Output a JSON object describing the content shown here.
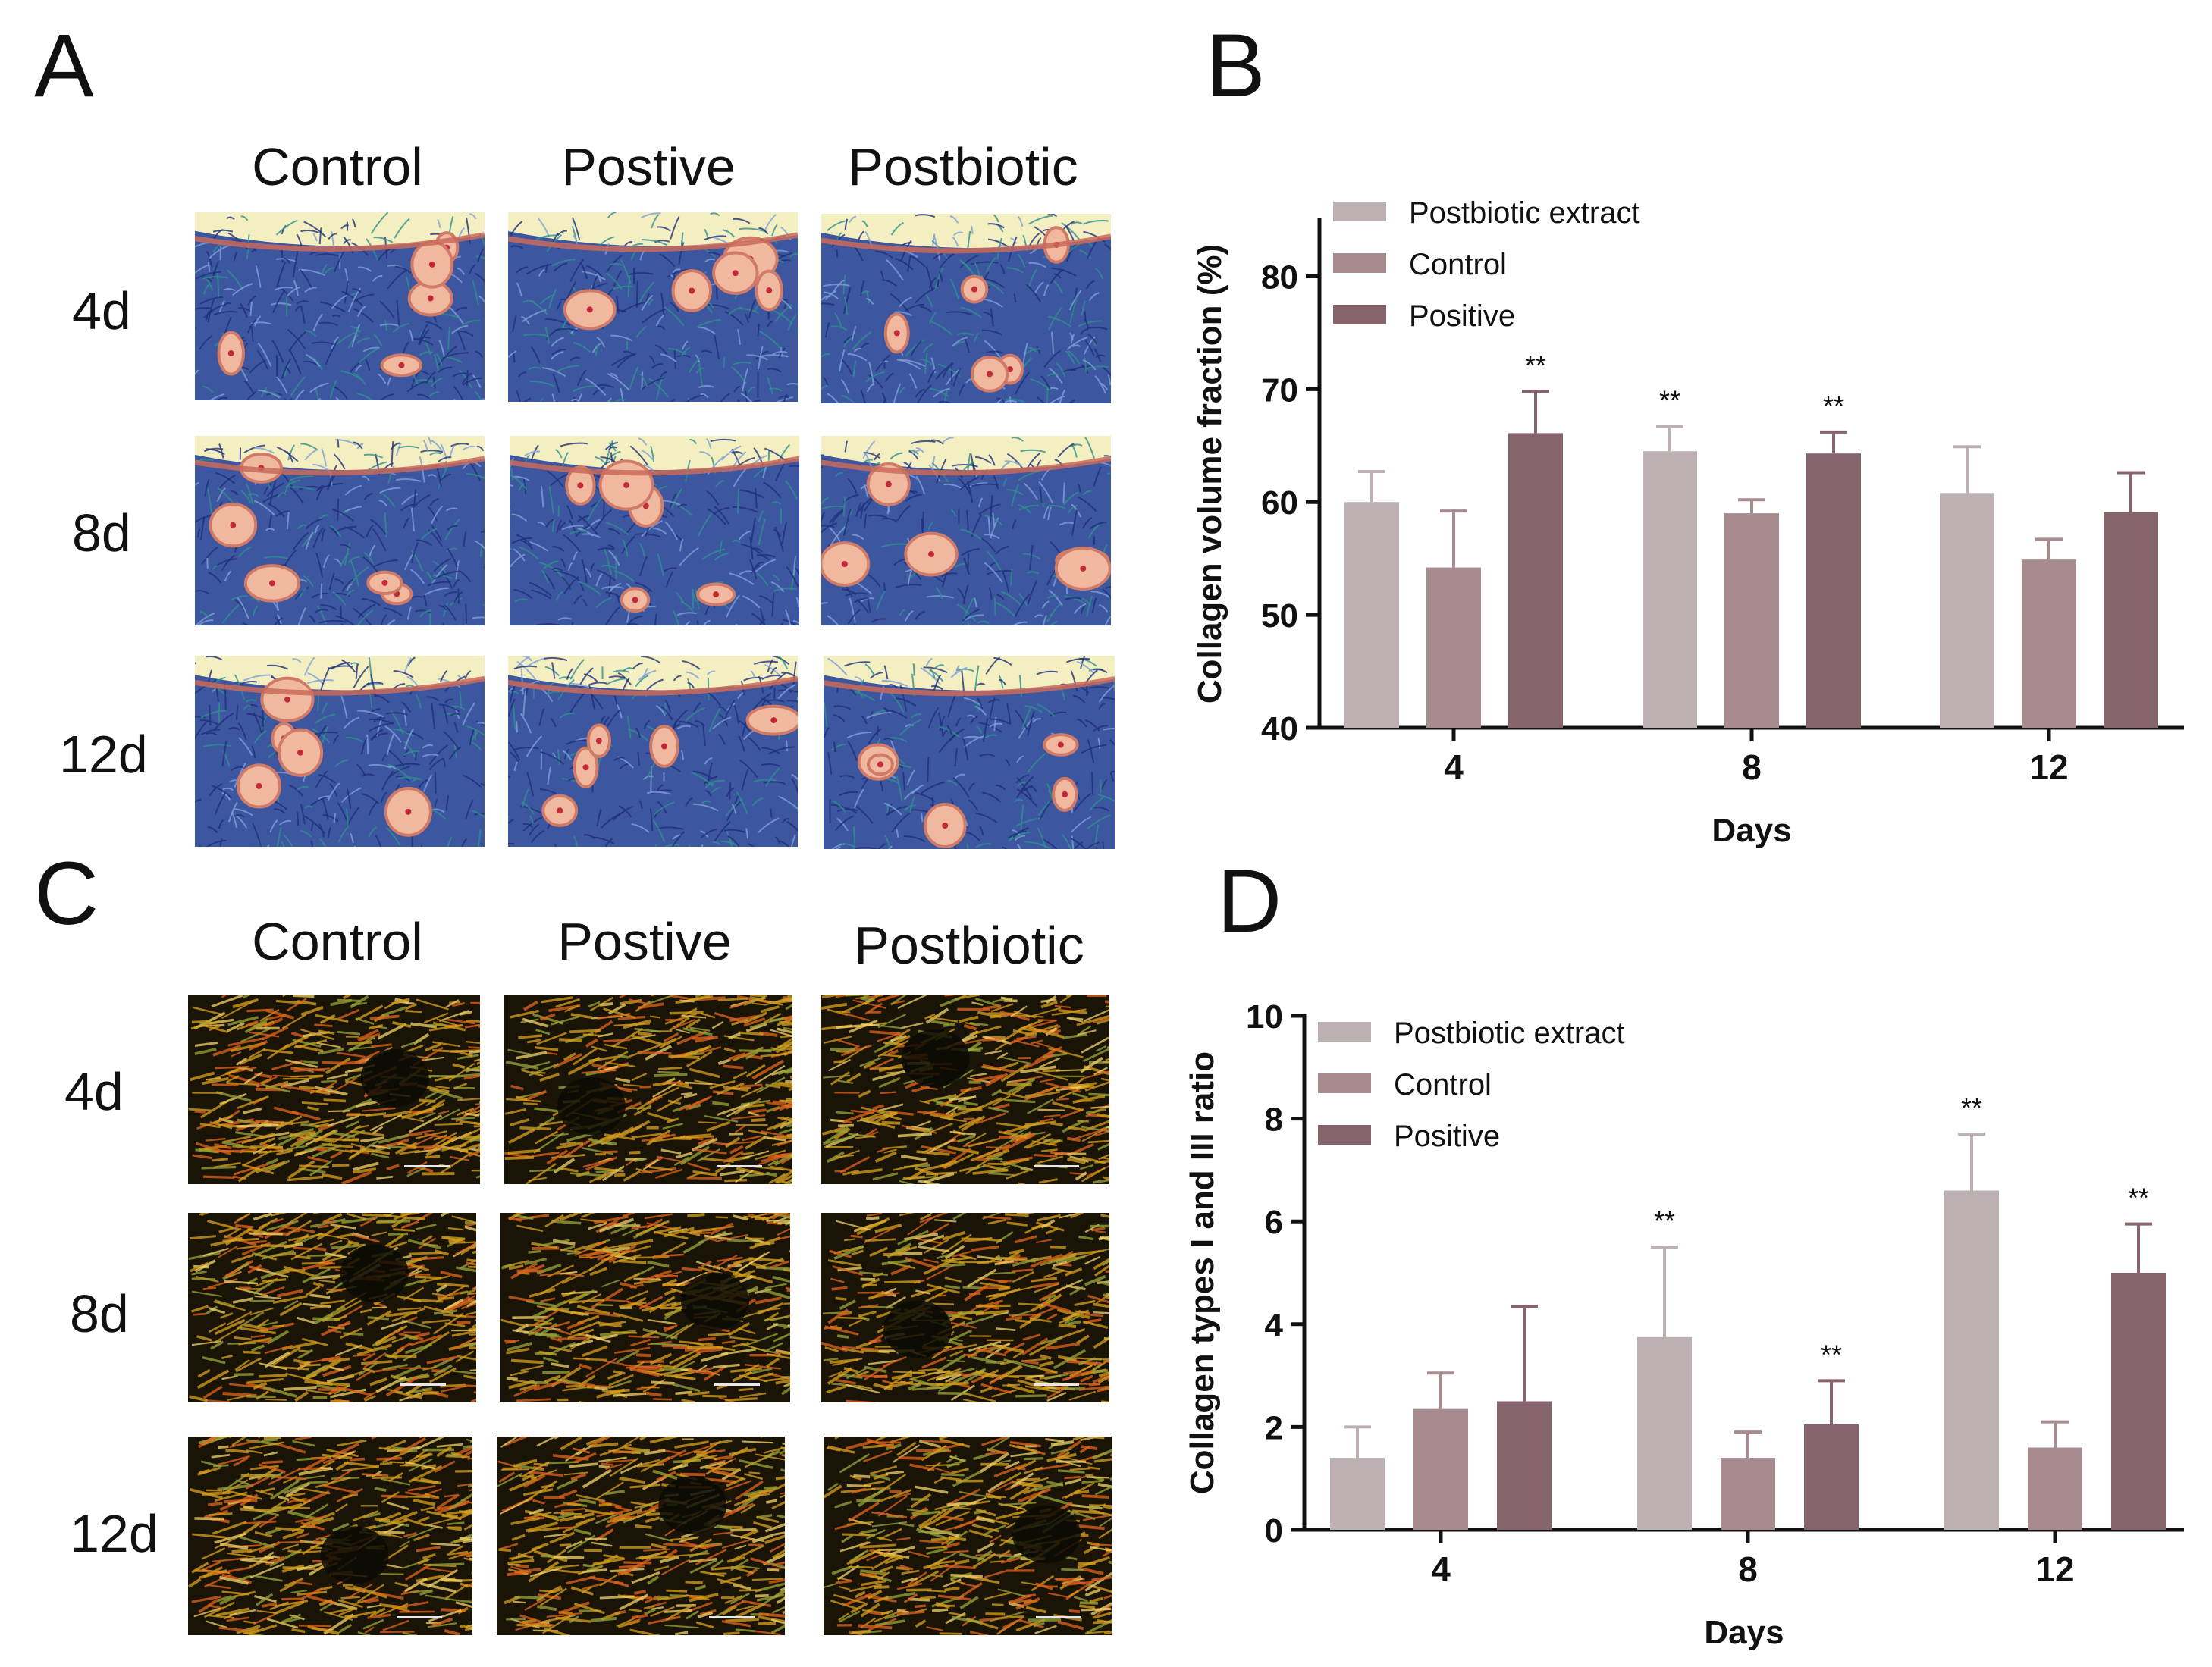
{
  "panels": {
    "A": {
      "letter": "A",
      "columns": [
        "Control",
        "Postive",
        "Postbiotic"
      ],
      "rows": [
        "4d",
        "8d",
        "12d"
      ]
    },
    "B": {
      "letter": "B"
    },
    "C": {
      "letter": "C",
      "columns": [
        "Control",
        "Postive",
        "Postbiotic"
      ],
      "rows": [
        "4d",
        "8d",
        "12d"
      ]
    },
    "D": {
      "letter": "D"
    }
  },
  "colors": {
    "postbiotic_extract": "#bdb0b2",
    "control": "#a88b8f",
    "positive": "#86646c",
    "masson_collagen": "#3d56a0",
    "masson_muscle": "#d07a68",
    "masson_background": "#f4efc0",
    "picrosirius_background": "#1a1406",
    "picrosirius_fibers": "#d9a01e"
  },
  "chart_data": [
    {
      "panel": "B",
      "type": "bar",
      "xlabel": "Days",
      "ylabel": "Collagen volume fraction (%)",
      "categories": [
        "4",
        "8",
        "12"
      ],
      "ylim": [
        40,
        85
      ],
      "yticks": [
        40,
        50,
        60,
        70,
        80
      ],
      "legend_position": "top-left",
      "series": [
        {
          "name": "Postbiotic extract",
          "color": "#bdb0b2",
          "values": [
            60.0,
            64.5,
            60.8
          ],
          "errors": [
            2.7,
            2.2,
            4.1
          ],
          "significance": [
            "",
            "**",
            ""
          ]
        },
        {
          "name": "Control",
          "color": "#a88b8f",
          "values": [
            54.2,
            59.0,
            54.9
          ],
          "errors": [
            5.0,
            1.2,
            1.8
          ],
          "significance": [
            "",
            "",
            ""
          ]
        },
        {
          "name": "Positive",
          "color": "#86646c",
          "values": [
            66.1,
            64.3,
            59.1
          ],
          "errors": [
            3.7,
            1.9,
            3.5
          ],
          "significance": [
            "**",
            "**",
            ""
          ]
        }
      ]
    },
    {
      "panel": "D",
      "type": "bar",
      "xlabel": "Days",
      "ylabel": "Collagen types I and III ratio",
      "categories": [
        "4",
        "8",
        "12"
      ],
      "ylim": [
        0,
        10
      ],
      "yticks": [
        0,
        2,
        4,
        6,
        8,
        10
      ],
      "legend_position": "top-left",
      "series": [
        {
          "name": "Postbiotic extract",
          "color": "#bdb0b2",
          "values": [
            1.4,
            3.75,
            6.6
          ],
          "errors": [
            0.6,
            1.75,
            1.1
          ],
          "significance": [
            "",
            "**",
            "**"
          ]
        },
        {
          "name": "Control",
          "color": "#a88b8f",
          "values": [
            2.35,
            1.4,
            1.6
          ],
          "errors": [
            0.7,
            0.5,
            0.5
          ],
          "significance": [
            "",
            "",
            ""
          ]
        },
        {
          "name": "Positive",
          "color": "#86646c",
          "values": [
            2.5,
            2.05,
            5.0
          ],
          "errors": [
            1.85,
            0.85,
            0.95
          ],
          "significance": [
            "",
            "**",
            "**"
          ]
        }
      ]
    }
  ]
}
